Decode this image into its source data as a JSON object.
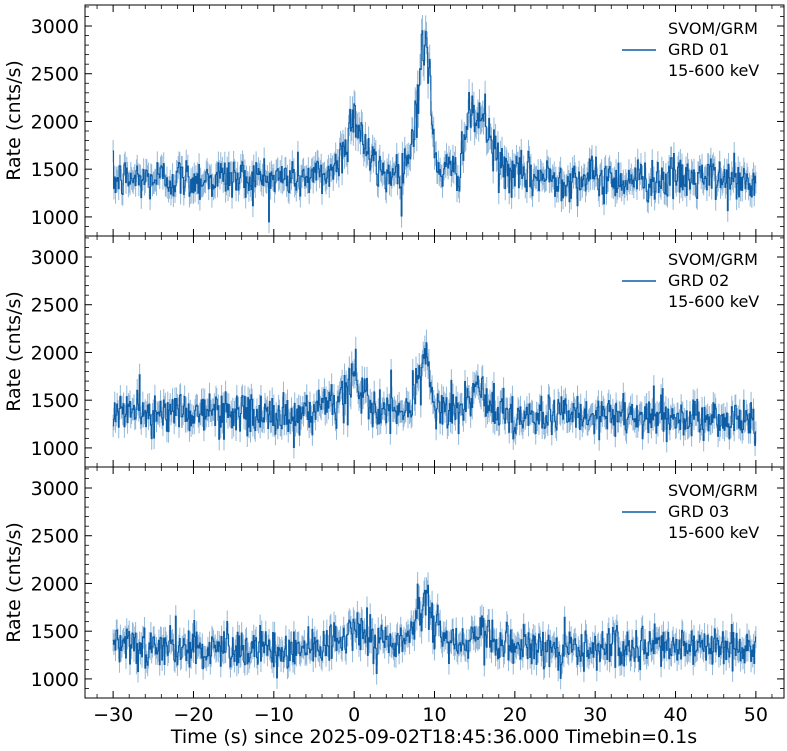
{
  "figure": {
    "xlabel": "Time (s) since 2025-09-02T18:45:36.000 Timebin=0.1s"
  },
  "chart_data": [
    {
      "type": "line",
      "instrument": "SVOM/GRM",
      "detector": "GRD 01",
      "energy_band": "15-600 keV",
      "legend": [
        "SVOM/GRM",
        "GRD 01",
        "15-600 keV"
      ],
      "ylabel": "Rate (cnts/s)",
      "xlim": [
        -33.5,
        53.5
      ],
      "ylim": [
        800,
        3220
      ],
      "xticks": [
        -30,
        -20,
        -10,
        0,
        10,
        20,
        30,
        40,
        50
      ],
      "xticklabels": [
        "",
        "",
        "",
        "",
        "",
        "",
        "",
        "",
        ""
      ],
      "yticks": [
        1000,
        1500,
        2000,
        2500,
        3000
      ],
      "yticklabels": [
        "1000",
        "1500",
        "2000",
        "2500",
        "3000"
      ],
      "color": "#0c5da5",
      "errorbar_color": "#6fa0cc",
      "binsize": 0.1,
      "x": [
        -30,
        -28,
        -26,
        -24,
        -22,
        -20,
        -18,
        -16,
        -14,
        -12,
        -10,
        -8,
        -6,
        -4,
        -2,
        -1,
        0,
        1,
        2,
        3,
        4,
        5,
        6,
        7,
        8,
        8.5,
        9,
        9.5,
        10,
        11,
        12,
        13,
        14,
        15,
        16,
        17,
        18,
        20,
        22,
        24,
        26,
        28,
        30,
        32,
        34,
        36,
        38,
        40,
        42,
        44,
        46,
        48,
        50
      ],
      "y": [
        1380,
        1400,
        1390,
        1410,
        1400,
        1395,
        1405,
        1420,
        1400,
        1410,
        1400,
        1410,
        1420,
        1420,
        1550,
        1800,
        2100,
        1850,
        1600,
        1480,
        1450,
        1470,
        1500,
        1700,
        2300,
        2750,
        2850,
        2300,
        1600,
        1500,
        1450,
        1500,
        1950,
        2050,
        2050,
        1800,
        1550,
        1430,
        1420,
        1410,
        1400,
        1400,
        1400,
        1395,
        1400,
        1390,
        1400,
        1400,
        1390,
        1400,
        1390,
        1380,
        1300
      ]
    },
    {
      "type": "line",
      "instrument": "SVOM/GRM",
      "detector": "GRD 02",
      "energy_band": "15-600 keV",
      "legend": [
        "SVOM/GRM",
        "GRD 02",
        "15-600 keV"
      ],
      "ylabel": "Rate (cnts/s)",
      "xlim": [
        -33.5,
        53.5
      ],
      "ylim": [
        800,
        3220
      ],
      "xticks": [
        -30,
        -20,
        -10,
        0,
        10,
        20,
        30,
        40,
        50
      ],
      "xticklabels": [
        "",
        "",
        "",
        "",
        "",
        "",
        "",
        "",
        ""
      ],
      "yticks": [
        1000,
        1500,
        2000,
        2500,
        3000
      ],
      "yticklabels": [
        "1000",
        "1500",
        "2000",
        "2500",
        "3000"
      ],
      "color": "#0c5da5",
      "errorbar_color": "#6fa0cc",
      "binsize": 0.1,
      "x": [
        -30,
        -28,
        -26,
        -24,
        -22,
        -20,
        -18,
        -16,
        -14,
        -12,
        -10,
        -8,
        -6,
        -4,
        -2,
        -1,
        0,
        1,
        2,
        3,
        4,
        5,
        6,
        7,
        8,
        8.5,
        9,
        9.5,
        10,
        11,
        12,
        13,
        14,
        15,
        16,
        17,
        18,
        20,
        22,
        24,
        26,
        28,
        30,
        32,
        34,
        36,
        38,
        40,
        42,
        44,
        46,
        48,
        50
      ],
      "y": [
        1400,
        1380,
        1370,
        1360,
        1370,
        1380,
        1370,
        1370,
        1360,
        1350,
        1340,
        1330,
        1330,
        1360,
        1450,
        1600,
        1750,
        1600,
        1450,
        1380,
        1360,
        1370,
        1380,
        1450,
        1700,
        1850,
        1900,
        1750,
        1450,
        1380,
        1360,
        1370,
        1500,
        1580,
        1550,
        1450,
        1370,
        1340,
        1330,
        1330,
        1330,
        1320,
        1320,
        1310,
        1320,
        1310,
        1310,
        1300,
        1310,
        1300,
        1300,
        1290,
        1280
      ]
    },
    {
      "type": "line",
      "instrument": "SVOM/GRM",
      "detector": "GRD 03",
      "energy_band": "15-600 keV",
      "legend": [
        "SVOM/GRM",
        "GRD 03",
        "15-600 keV"
      ],
      "ylabel": "Rate (cnts/s)",
      "xlim": [
        -33.5,
        53.5
      ],
      "ylim": [
        800,
        3220
      ],
      "xticks": [
        -30,
        -20,
        -10,
        0,
        10,
        20,
        30,
        40,
        50
      ],
      "xticklabels": [
        "−30",
        "−20",
        "−10",
        "0",
        "10",
        "20",
        "30",
        "40",
        "50"
      ],
      "yticks": [
        1000,
        1500,
        2000,
        2500,
        3000
      ],
      "yticklabels": [
        "1000",
        "1500",
        "2000",
        "2500",
        "3000"
      ],
      "color": "#0c5da5",
      "errorbar_color": "#6fa0cc",
      "binsize": 0.1,
      "x": [
        -30,
        -28,
        -26,
        -24,
        -22,
        -20,
        -18,
        -16,
        -14,
        -12,
        -10,
        -8,
        -6,
        -4,
        -2,
        -1,
        0,
        1,
        2,
        3,
        4,
        5,
        6,
        7,
        8,
        8.5,
        9,
        9.5,
        10,
        11,
        12,
        13,
        14,
        15,
        16,
        17,
        18,
        20,
        22,
        24,
        26,
        28,
        30,
        32,
        34,
        36,
        38,
        40,
        42,
        44,
        46,
        48,
        50
      ],
      "y": [
        1300,
        1320,
        1330,
        1320,
        1330,
        1330,
        1320,
        1330,
        1320,
        1330,
        1330,
        1320,
        1330,
        1340,
        1400,
        1480,
        1580,
        1500,
        1420,
        1380,
        1370,
        1380,
        1400,
        1480,
        1650,
        1800,
        1900,
        1750,
        1500,
        1420,
        1380,
        1390,
        1450,
        1470,
        1460,
        1420,
        1380,
        1360,
        1350,
        1340,
        1340,
        1330,
        1330,
        1330,
        1320,
        1320,
        1320,
        1320,
        1310,
        1310,
        1310,
        1300,
        1300
      ]
    }
  ]
}
